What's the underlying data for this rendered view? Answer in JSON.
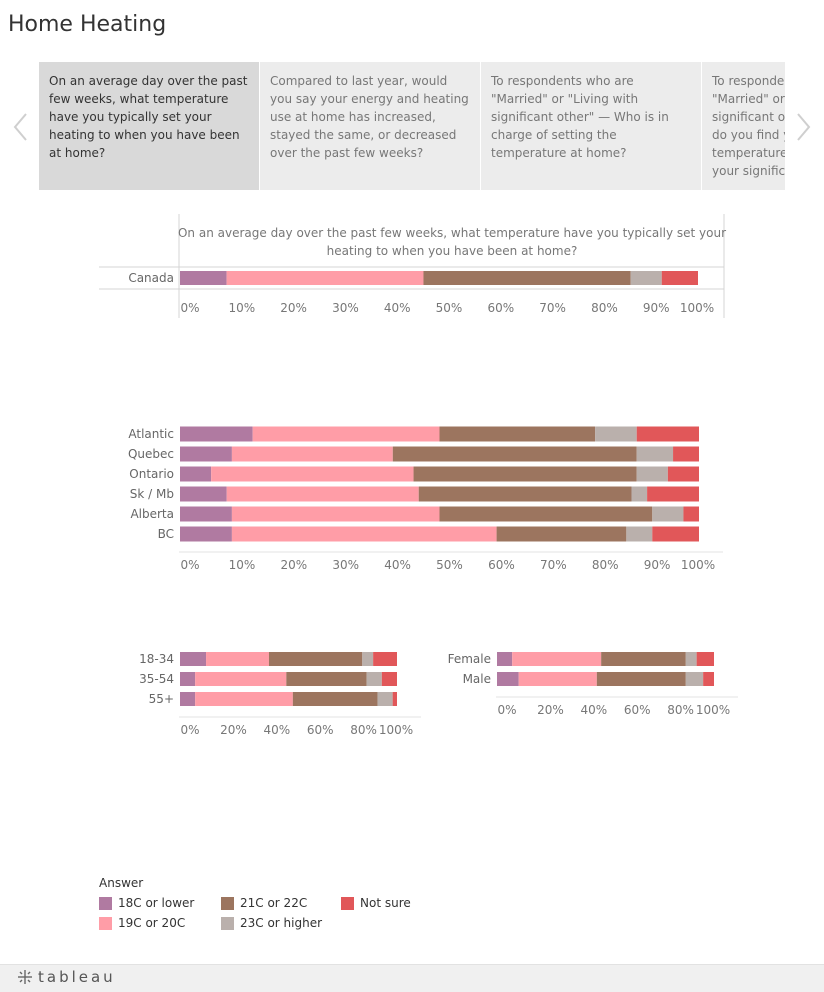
{
  "page": {
    "title": "Home Heating"
  },
  "nav": {
    "prev_icon": "chevron-left",
    "next_icon": "chevron-right"
  },
  "cards": [
    {
      "text": "On an average day over the past few weeks, what temperature have you typically set your heating to when you have been at home?",
      "active": true
    },
    {
      "text": "Compared to last year, would you say your energy and heating use at home has increased, stayed the same, or decreased over the past few weeks?",
      "active": false
    },
    {
      "text": "To respondents who are \"Married\" or \"Living with significant other\" — Who is in charge of setting the temperature at home?",
      "active": false
    },
    {
      "text": "To respondents who are \"Married\" or \"Living with significant other\" — How often do you find yourself setting the temperature and then telling your significant other?",
      "active": false
    }
  ],
  "legend": {
    "title": "Answer",
    "items": [
      {
        "label": "18C or lower",
        "color": "#b07aa1"
      },
      {
        "label": "19C or 20C",
        "color": "#ff9da7"
      },
      {
        "label": "21C or 22C",
        "color": "#9c755f"
      },
      {
        "label": "23C or higher",
        "color": "#bab0ac"
      },
      {
        "label": "Not sure",
        "color": "#e15759"
      }
    ]
  },
  "chart_data": [
    {
      "type": "bar",
      "orientation": "horizontal",
      "stacked": true,
      "title": "On an average day over the past few weeks, what temperature have you typically set your heating to when you have been at home?",
      "categories": [
        "Canada"
      ],
      "series": [
        {
          "name": "18C or lower",
          "values": [
            9
          ]
        },
        {
          "name": "19C or 20C",
          "values": [
            38
          ]
        },
        {
          "name": "21C or 22C",
          "values": [
            40
          ]
        },
        {
          "name": "23C or higher",
          "values": [
            6
          ]
        },
        {
          "name": "Not sure",
          "values": [
            7
          ]
        }
      ],
      "xlim": [
        0,
        100
      ],
      "ticks": [
        "0%",
        "10%",
        "20%",
        "30%",
        "40%",
        "50%",
        "60%",
        "70%",
        "80%",
        "90%",
        "100%"
      ]
    },
    {
      "type": "bar",
      "orientation": "horizontal",
      "stacked": true,
      "categories": [
        "Atlantic",
        "Quebec",
        "Ontario",
        "Sk / Mb",
        "Alberta",
        "BC"
      ],
      "series": [
        {
          "name": "18C or lower",
          "values": [
            14,
            10,
            6,
            9,
            10,
            10
          ]
        },
        {
          "name": "19C or 20C",
          "values": [
            36,
            31,
            39,
            37,
            40,
            51
          ]
        },
        {
          "name": "21C or 22C",
          "values": [
            30,
            47,
            43,
            41,
            41,
            25
          ]
        },
        {
          "name": "23C or higher",
          "values": [
            8,
            7,
            6,
            3,
            6,
            5
          ]
        },
        {
          "name": "Not sure",
          "values": [
            12,
            5,
            6,
            10,
            3,
            9
          ]
        }
      ],
      "xlim": [
        0,
        100
      ],
      "ticks": [
        "0%",
        "10%",
        "20%",
        "30%",
        "40%",
        "50%",
        "60%",
        "70%",
        "80%",
        "90%",
        "100%"
      ]
    },
    {
      "type": "bar",
      "orientation": "horizontal",
      "stacked": true,
      "categories": [
        "18-34",
        "35-54",
        "55+"
      ],
      "series": [
        {
          "name": "18C or lower",
          "values": [
            12,
            7,
            7
          ]
        },
        {
          "name": "19C or 20C",
          "values": [
            29,
            42,
            45
          ]
        },
        {
          "name": "21C or 22C",
          "values": [
            43,
            37,
            39
          ]
        },
        {
          "name": "23C or higher",
          "values": [
            5,
            7,
            7
          ]
        },
        {
          "name": "Not sure",
          "values": [
            11,
            7,
            2
          ]
        }
      ],
      "xlim": [
        0,
        100
      ],
      "ticks": [
        "0%",
        "20%",
        "40%",
        "60%",
        "80%",
        "100%"
      ]
    },
    {
      "type": "bar",
      "orientation": "horizontal",
      "stacked": true,
      "categories": [
        "Female",
        "Male"
      ],
      "series": [
        {
          "name": "18C or lower",
          "values": [
            7,
            10
          ]
        },
        {
          "name": "19C or 20C",
          "values": [
            41,
            36
          ]
        },
        {
          "name": "21C or 22C",
          "values": [
            39,
            41
          ]
        },
        {
          "name": "23C or higher",
          "values": [
            5,
            8
          ]
        },
        {
          "name": "Not sure",
          "values": [
            8,
            5
          ]
        }
      ],
      "xlim": [
        0,
        100
      ],
      "ticks": [
        "0%",
        "20%",
        "40%",
        "60%",
        "80%",
        "100%"
      ]
    }
  ],
  "footer": {
    "brand": "tableau"
  }
}
